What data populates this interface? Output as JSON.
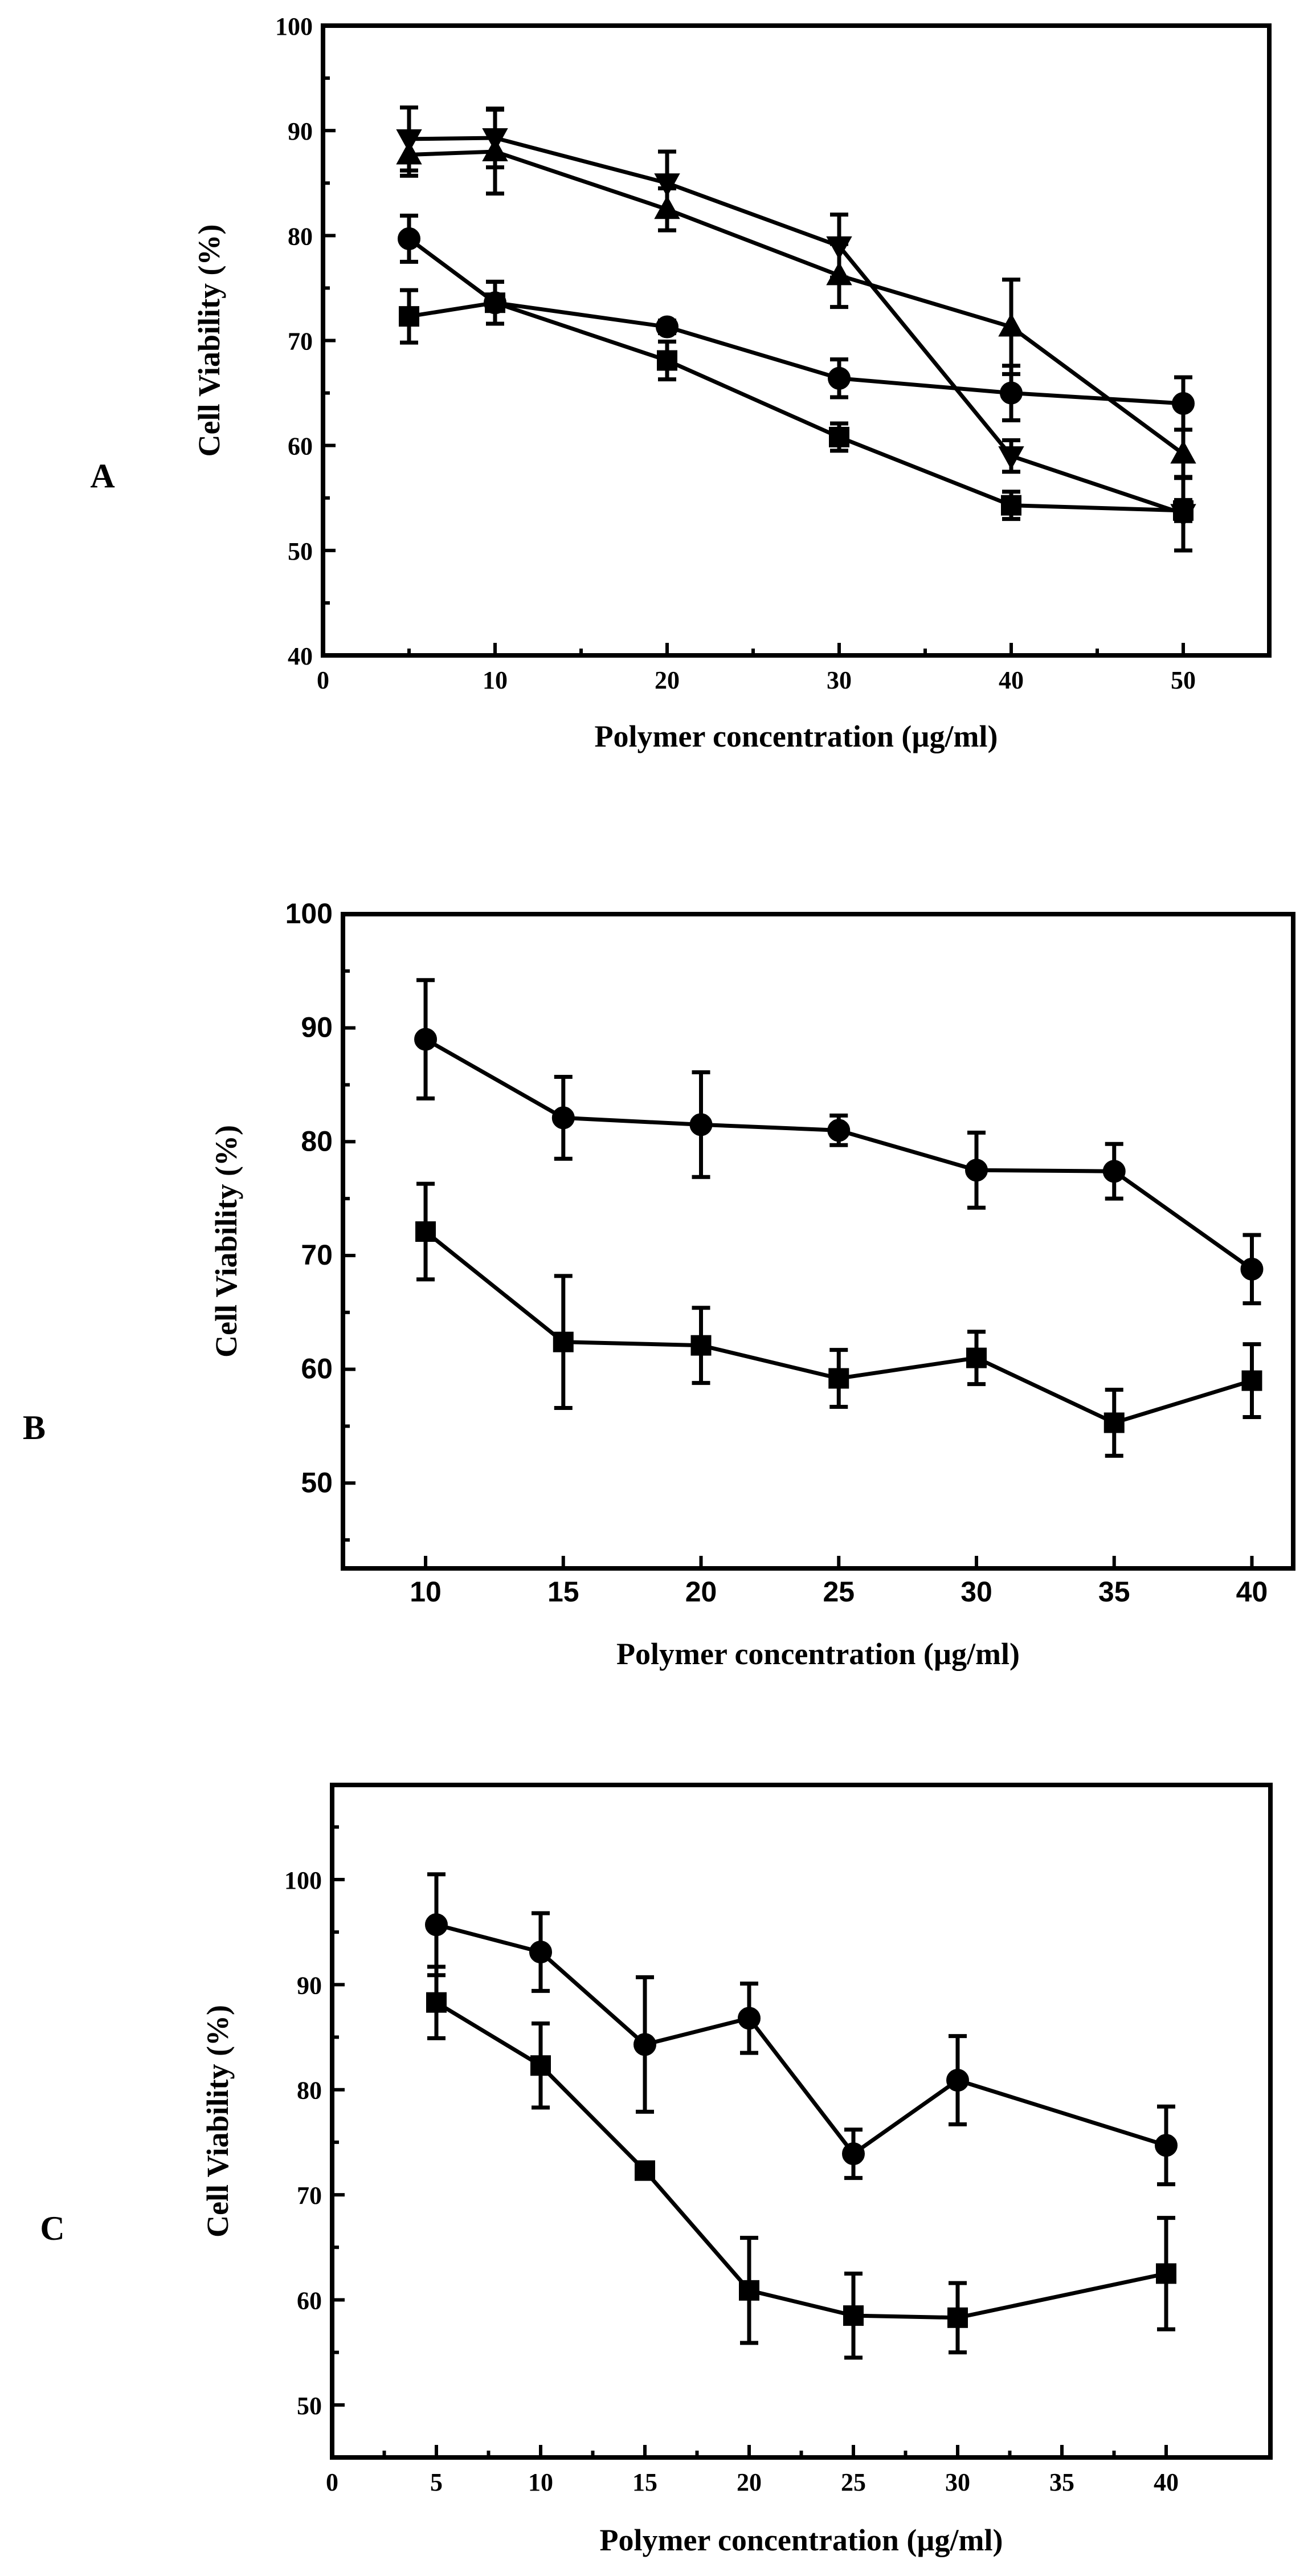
{
  "chart_data": [
    {
      "type": "line",
      "panel_label": "A",
      "xlabel": "Polymer concentration (µg/ml)",
      "ylabel": "Cell Viability (%)",
      "xlim": [
        0,
        55
      ],
      "ylim": [
        40,
        100
      ],
      "xticks": [
        "0",
        "10",
        "20",
        "30",
        "40",
        "50"
      ],
      "yticks": [
        "40",
        "50",
        "60",
        "70",
        "80",
        "90",
        "100"
      ],
      "x": [
        5,
        10,
        20,
        30,
        40,
        50
      ],
      "series": [
        {
          "name": "square",
          "marker": "square",
          "values": [
            72.3,
            73.6,
            68.1,
            60.8,
            54.3,
            53.8
          ],
          "errors": [
            2.5,
            2.0,
            1.8,
            1.3,
            1.3,
            1.0
          ]
        },
        {
          "name": "circle",
          "marker": "circle",
          "values": [
            79.7,
            73.6,
            71.3,
            66.4,
            65.0,
            64.0
          ],
          "errors": [
            2.2,
            2.0,
            0.6,
            1.8,
            2.6,
            2.5
          ]
        },
        {
          "name": "triangle-up",
          "marker": "triangle-up",
          "values": [
            87.7,
            88.0,
            82.5,
            76.2,
            71.3,
            59.2
          ],
          "errors": [
            2.0,
            4.0,
            2.0,
            3.0,
            4.5,
            2.3
          ]
        },
        {
          "name": "triangle-down",
          "marker": "triangle-down",
          "values": [
            89.2,
            89.3,
            85.0,
            79.0,
            59.0,
            53.5
          ],
          "errors": [
            3.0,
            2.8,
            3.0,
            3.0,
            1.5,
            3.5
          ]
        }
      ]
    },
    {
      "type": "line",
      "panel_label": "B",
      "xlabel": "Polymer concentration (µg/ml)",
      "ylabel": "Cell Viability (%)",
      "xlim": [
        7,
        41.5
      ],
      "ylim": [
        42.5,
        100
      ],
      "xticks": [
        "10",
        "15",
        "20",
        "25",
        "30",
        "35",
        "40"
      ],
      "yticks": [
        "50",
        "60",
        "70",
        "80",
        "90",
        "100"
      ],
      "x": [
        10,
        15,
        20,
        25,
        30,
        35,
        40
      ],
      "series": [
        {
          "name": "square",
          "marker": "square",
          "values": [
            72.1,
            62.4,
            62.1,
            59.2,
            61.0,
            55.3,
            59.0
          ],
          "errors": [
            4.2,
            5.8,
            3.3,
            2.5,
            2.3,
            2.9,
            3.2
          ]
        },
        {
          "name": "circle",
          "marker": "circle",
          "values": [
            89.0,
            82.1,
            81.5,
            81.0,
            77.5,
            77.4,
            68.8
          ],
          "errors": [
            5.2,
            3.6,
            4.6,
            1.3,
            3.3,
            2.4,
            3.0
          ]
        }
      ]
    },
    {
      "type": "line",
      "panel_label": "C",
      "xlabel": "Polymer concentration (µg/ml)",
      "ylabel": "Cell Viability (%)",
      "xlim": [
        0,
        45
      ],
      "ylim": [
        45,
        109
      ],
      "xticks": [
        "0",
        "5",
        "10",
        "15",
        "20",
        "25",
        "30",
        "35",
        "40"
      ],
      "yticks": [
        "50",
        "60",
        "70",
        "80",
        "90",
        "100"
      ],
      "x": [
        5,
        10,
        15,
        20,
        25,
        30,
        40
      ],
      "series": [
        {
          "name": "square",
          "marker": "square",
          "values": [
            88.3,
            82.3,
            72.3,
            60.9,
            58.5,
            58.3,
            62.5
          ],
          "errors": [
            3.4,
            4.0,
            0.5,
            5.0,
            4.0,
            3.3,
            5.3
          ]
        },
        {
          "name": "circle",
          "marker": "circle",
          "values": [
            95.7,
            93.1,
            84.3,
            86.8,
            73.9,
            80.9,
            74.7
          ],
          "errors": [
            4.8,
            3.7,
            6.4,
            3.3,
            2.3,
            4.2,
            3.7
          ]
        }
      ]
    }
  ]
}
